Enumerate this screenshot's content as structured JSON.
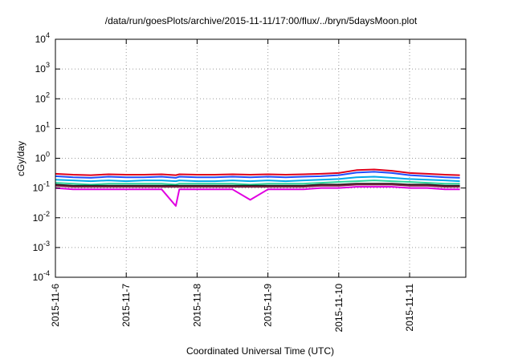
{
  "chart_data": {
    "type": "line",
    "title": "/data/run/goesPlots/archive/2015-11-11/17:00/flux/../bryn/5daysMoon.plot",
    "xlabel": "Coordinated Universal Time (UTC)",
    "ylabel": "cGy/day",
    "yscale": "log",
    "ylim": [
      0.0001,
      10000
    ],
    "xlim": [
      "2015-11-06 00:00",
      "2015-11-11 17:00"
    ],
    "grid": true,
    "legend": "none",
    "x_ticks": [
      "2015-11-6",
      "2015-11-7",
      "2015-11-8",
      "2015-11-9",
      "2015-11-10",
      "2015-11-11"
    ],
    "y_ticks": [
      {
        "base": "10",
        "exp": "-4"
      },
      {
        "base": "10",
        "exp": "-3"
      },
      {
        "base": "10",
        "exp": "-2"
      },
      {
        "base": "10",
        "exp": "-1"
      },
      {
        "base": "10",
        "exp": "0"
      },
      {
        "base": "10",
        "exp": "1"
      },
      {
        "base": "10",
        "exp": "2"
      },
      {
        "base": "10",
        "exp": "3"
      },
      {
        "base": "10",
        "exp": "4"
      }
    ],
    "x_days": [
      0,
      0.25,
      0.5,
      0.75,
      1,
      1.25,
      1.5,
      1.7,
      1.75,
      2,
      2.25,
      2.5,
      2.75,
      3,
      3.25,
      3.5,
      3.75,
      4,
      4.25,
      4.5,
      4.75,
      5,
      5.25,
      5.5,
      5.71
    ],
    "series": [
      {
        "color": "#e0001a",
        "values": [
          0.3,
          0.28,
          0.27,
          0.29,
          0.28,
          0.28,
          0.29,
          0.27,
          0.29,
          0.28,
          0.28,
          0.29,
          0.28,
          0.29,
          0.28,
          0.29,
          0.3,
          0.32,
          0.4,
          0.42,
          0.38,
          0.32,
          0.3,
          0.28,
          0.27
        ]
      },
      {
        "color": "#1f4fff",
        "values": [
          0.25,
          0.23,
          0.22,
          0.24,
          0.23,
          0.23,
          0.24,
          0.22,
          0.24,
          0.23,
          0.23,
          0.24,
          0.23,
          0.24,
          0.23,
          0.24,
          0.25,
          0.27,
          0.33,
          0.35,
          0.32,
          0.27,
          0.25,
          0.23,
          0.22
        ]
      },
      {
        "color": "#00a8e8",
        "values": [
          0.19,
          0.18,
          0.17,
          0.18,
          0.17,
          0.18,
          0.18,
          0.17,
          0.18,
          0.17,
          0.17,
          0.18,
          0.17,
          0.18,
          0.17,
          0.18,
          0.19,
          0.2,
          0.23,
          0.24,
          0.22,
          0.2,
          0.19,
          0.18,
          0.17
        ]
      },
      {
        "color": "#2bd49a",
        "values": [
          0.15,
          0.14,
          0.13,
          0.14,
          0.14,
          0.14,
          0.14,
          0.13,
          0.14,
          0.14,
          0.14,
          0.14,
          0.13,
          0.14,
          0.14,
          0.14,
          0.15,
          0.16,
          0.17,
          0.18,
          0.17,
          0.16,
          0.15,
          0.14,
          0.14
        ]
      },
      {
        "color": "#1a1a1a",
        "values": [
          0.13,
          0.12,
          0.12,
          0.12,
          0.12,
          0.12,
          0.12,
          0.12,
          0.12,
          0.12,
          0.12,
          0.12,
          0.12,
          0.12,
          0.12,
          0.12,
          0.13,
          0.13,
          0.14,
          0.14,
          0.14,
          0.13,
          0.13,
          0.12,
          0.12
        ]
      },
      {
        "color": "#7a1f3d",
        "values": [
          0.12,
          0.11,
          0.11,
          0.11,
          0.11,
          0.11,
          0.11,
          0.11,
          0.11,
          0.11,
          0.11,
          0.11,
          0.11,
          0.11,
          0.11,
          0.11,
          0.12,
          0.12,
          0.13,
          0.13,
          0.13,
          0.12,
          0.12,
          0.11,
          0.11
        ]
      },
      {
        "color": "#e000e0",
        "values": [
          0.1,
          0.09,
          0.09,
          0.09,
          0.09,
          0.09,
          0.09,
          0.025,
          0.09,
          0.09,
          0.09,
          0.09,
          0.04,
          0.09,
          0.09,
          0.09,
          0.1,
          0.1,
          0.11,
          0.11,
          0.11,
          0.1,
          0.1,
          0.09,
          0.09
        ]
      }
    ]
  }
}
